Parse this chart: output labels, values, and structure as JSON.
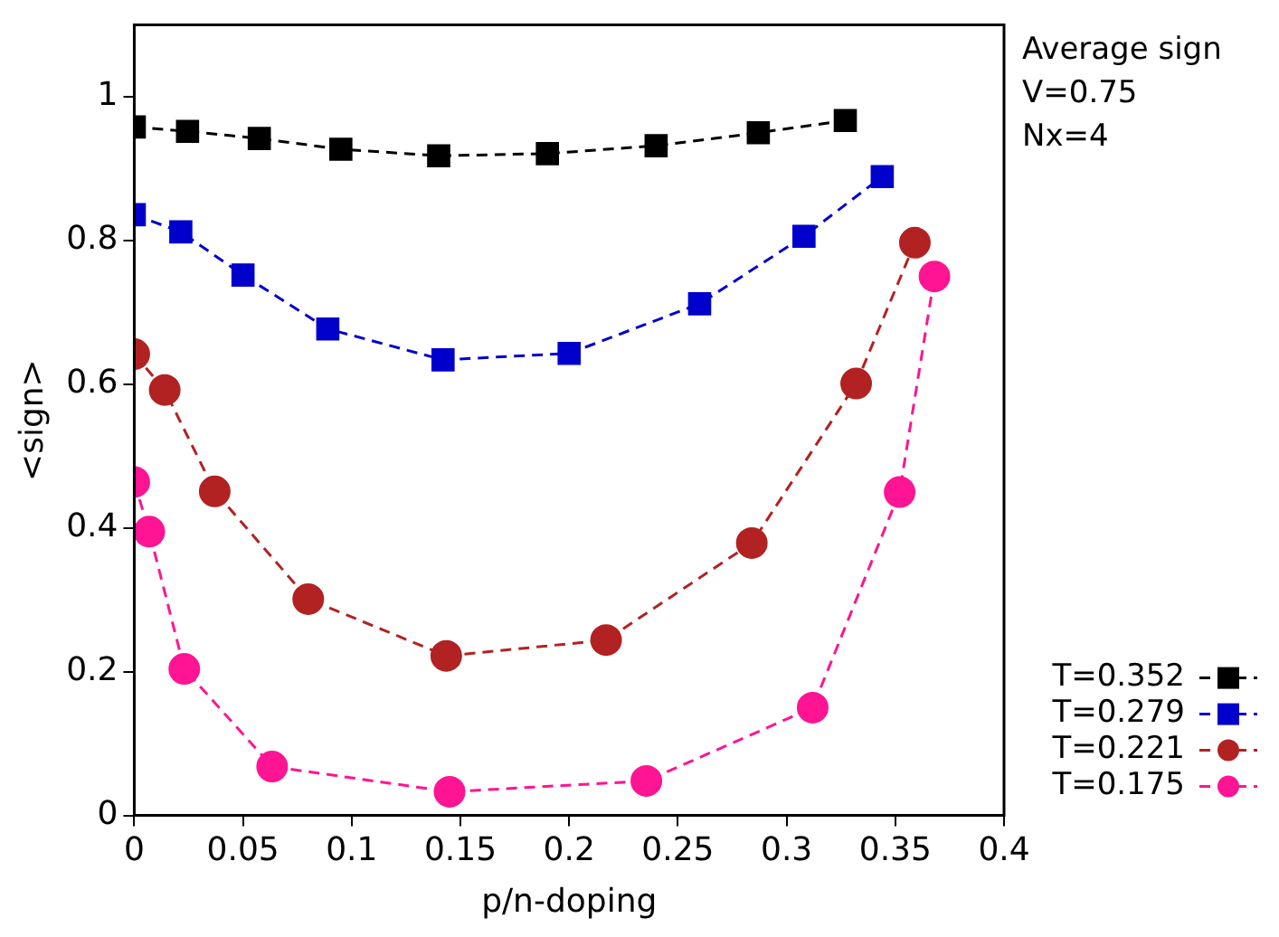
{
  "chart_data": {
    "type": "line",
    "xlabel": "p/n-doping",
    "ylabel": "<sign>",
    "annotations": [
      "Average sign",
      "V=0.75",
      "Nx=4"
    ],
    "xlim": [
      0,
      0.4
    ],
    "xticks": [
      0,
      0.05,
      0.1,
      0.15,
      0.2,
      0.25,
      0.3,
      0.35,
      0.4
    ],
    "ylim": [
      0,
      1.1
    ],
    "yticks": [
      0,
      0.2,
      0.4,
      0.6,
      0.8,
      1
    ],
    "grid": false,
    "legend": "bottom right",
    "line_style": "dashed",
    "series": [
      {
        "name": "T=0.352",
        "color": "#000000",
        "marker": "square",
        "x": [
          0,
          0.0245,
          0.0575,
          0.095,
          0.14,
          0.19,
          0.24,
          0.287,
          0.327
        ],
        "values": [
          0.958,
          0.952,
          0.942,
          0.927,
          0.918,
          0.921,
          0.932,
          0.95,
          0.967
        ]
      },
      {
        "name": "T=0.279",
        "color": "#0000cc",
        "marker": "square",
        "x": [
          0,
          0.0214,
          0.05,
          0.089,
          0.142,
          0.2,
          0.26,
          0.308,
          0.344
        ],
        "values": [
          0.836,
          0.812,
          0.752,
          0.677,
          0.634,
          0.643,
          0.712,
          0.806,
          0.889
        ]
      },
      {
        "name": "T=0.221",
        "color": "#b22222",
        "marker": "circle",
        "x": [
          0,
          0.014,
          0.037,
          0.08,
          0.1435,
          0.217,
          0.284,
          0.332,
          0.359
        ],
        "values": [
          0.642,
          0.592,
          0.451,
          0.301,
          0.222,
          0.244,
          0.379,
          0.601,
          0.797
        ]
      },
      {
        "name": "T=0.175",
        "color": "#ff1493",
        "marker": "circle",
        "x": [
          0,
          0.0069,
          0.023,
          0.0634,
          0.145,
          0.2355,
          0.312,
          0.352,
          0.368
        ],
        "values": [
          0.464,
          0.395,
          0.204,
          0.068,
          0.033,
          0.048,
          0.15,
          0.45,
          0.75
        ]
      }
    ]
  }
}
